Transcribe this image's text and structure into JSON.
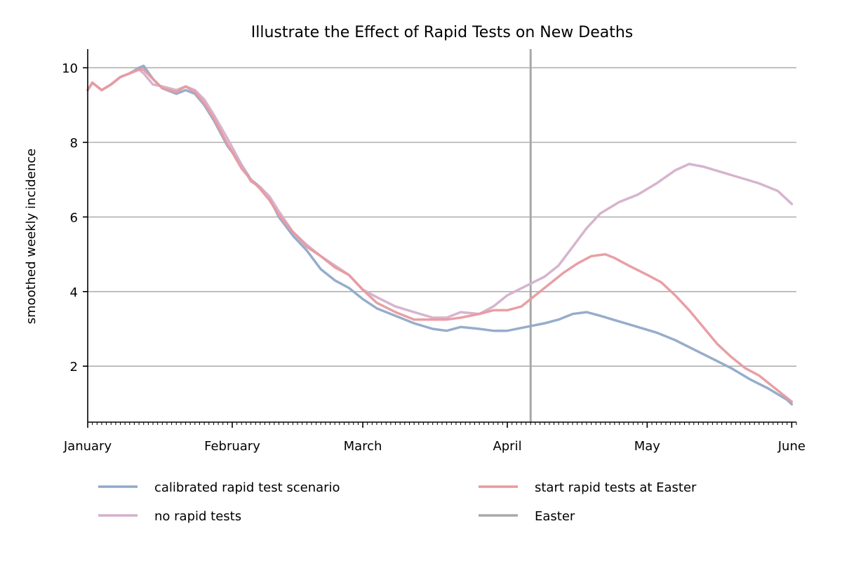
{
  "chart_data": {
    "type": "line",
    "title": "Illustrate the Effect of Rapid Tests on New Deaths",
    "xlabel": "",
    "ylabel": "smoothed weekly incidence",
    "x_axis": {
      "type": "date",
      "range": [
        "2021-01-01",
        "2021-06-02"
      ],
      "tick_labels": [
        "January",
        "February",
        "March",
        "April",
        "May",
        "June"
      ],
      "tick_dates": [
        "2021-01-01",
        "2021-02-01",
        "2021-03-01",
        "2021-04-01",
        "2021-05-01",
        "2021-06-01"
      ]
    },
    "y_axis": {
      "ticks": [
        2,
        4,
        6,
        8,
        10
      ],
      "range": [
        0.5,
        10.5
      ]
    },
    "grid": "horizontal",
    "legend_position": "below",
    "series": [
      {
        "name": "calibrated rapid test scenario",
        "color": "#90a9c8",
        "points": [
          [
            "2021-01-01",
            9.4
          ],
          [
            "2021-01-02",
            9.6
          ],
          [
            "2021-01-04",
            9.4
          ],
          [
            "2021-01-06",
            9.55
          ],
          [
            "2021-01-08",
            9.75
          ],
          [
            "2021-01-10",
            9.85
          ],
          [
            "2021-01-12",
            10.0
          ],
          [
            "2021-01-13",
            10.05
          ],
          [
            "2021-01-15",
            9.7
          ],
          [
            "2021-01-17",
            9.45
          ],
          [
            "2021-01-20",
            9.3
          ],
          [
            "2021-01-22",
            9.4
          ],
          [
            "2021-01-24",
            9.3
          ],
          [
            "2021-01-26",
            9.0
          ],
          [
            "2021-01-28",
            8.6
          ],
          [
            "2021-01-31",
            7.9
          ],
          [
            "2021-02-03",
            7.4
          ],
          [
            "2021-02-05",
            7.0
          ],
          [
            "2021-02-07",
            6.8
          ],
          [
            "2021-02-09",
            6.5
          ],
          [
            "2021-02-11",
            6.0
          ],
          [
            "2021-02-14",
            5.5
          ],
          [
            "2021-02-17",
            5.1
          ],
          [
            "2021-02-20",
            4.6
          ],
          [
            "2021-02-23",
            4.3
          ],
          [
            "2021-02-26",
            4.1
          ],
          [
            "2021-03-01",
            3.8
          ],
          [
            "2021-03-04",
            3.55
          ],
          [
            "2021-03-08",
            3.35
          ],
          [
            "2021-03-12",
            3.15
          ],
          [
            "2021-03-16",
            3.0
          ],
          [
            "2021-03-19",
            2.95
          ],
          [
            "2021-03-22",
            3.05
          ],
          [
            "2021-03-26",
            3.0
          ],
          [
            "2021-03-29",
            2.95
          ],
          [
            "2021-04-01",
            2.95
          ],
          [
            "2021-04-05",
            3.05
          ],
          [
            "2021-04-09",
            3.15
          ],
          [
            "2021-04-12",
            3.25
          ],
          [
            "2021-04-15",
            3.4
          ],
          [
            "2021-04-18",
            3.45
          ],
          [
            "2021-04-21",
            3.35
          ],
          [
            "2021-04-25",
            3.2
          ],
          [
            "2021-04-29",
            3.05
          ],
          [
            "2021-05-03",
            2.9
          ],
          [
            "2021-05-07",
            2.7
          ],
          [
            "2021-05-11",
            2.45
          ],
          [
            "2021-05-15",
            2.2
          ],
          [
            "2021-05-19",
            1.95
          ],
          [
            "2021-05-23",
            1.65
          ],
          [
            "2021-05-27",
            1.4
          ],
          [
            "2021-05-31",
            1.1
          ],
          [
            "2021-06-01",
            0.98
          ]
        ]
      },
      {
        "name": "no rapid tests",
        "color": "#d4b0cb",
        "points": [
          [
            "2021-01-01",
            9.4
          ],
          [
            "2021-01-02",
            9.6
          ],
          [
            "2021-01-04",
            9.4
          ],
          [
            "2021-01-06",
            9.55
          ],
          [
            "2021-01-08",
            9.75
          ],
          [
            "2021-01-10",
            9.85
          ],
          [
            "2021-01-12",
            9.95
          ],
          [
            "2021-01-13",
            9.85
          ],
          [
            "2021-01-15",
            9.55
          ],
          [
            "2021-01-17",
            9.5
          ],
          [
            "2021-01-20",
            9.4
          ],
          [
            "2021-01-22",
            9.5
          ],
          [
            "2021-01-24",
            9.4
          ],
          [
            "2021-01-26",
            9.15
          ],
          [
            "2021-01-28",
            8.75
          ],
          [
            "2021-01-31",
            8.1
          ],
          [
            "2021-02-03",
            7.4
          ],
          [
            "2021-02-05",
            6.95
          ],
          [
            "2021-02-07",
            6.8
          ],
          [
            "2021-02-09",
            6.55
          ],
          [
            "2021-02-11",
            6.15
          ],
          [
            "2021-02-14",
            5.6
          ],
          [
            "2021-02-17",
            5.25
          ],
          [
            "2021-02-20",
            4.95
          ],
          [
            "2021-02-23",
            4.7
          ],
          [
            "2021-02-26",
            4.45
          ],
          [
            "2021-03-01",
            4.05
          ],
          [
            "2021-03-04",
            3.85
          ],
          [
            "2021-03-08",
            3.6
          ],
          [
            "2021-03-12",
            3.45
          ],
          [
            "2021-03-16",
            3.3
          ],
          [
            "2021-03-19",
            3.3
          ],
          [
            "2021-03-22",
            3.45
          ],
          [
            "2021-03-26",
            3.4
          ],
          [
            "2021-03-29",
            3.6
          ],
          [
            "2021-04-01",
            3.9
          ],
          [
            "2021-04-05",
            4.15
          ],
          [
            "2021-04-09",
            4.4
          ],
          [
            "2021-04-12",
            4.7
          ],
          [
            "2021-04-15",
            5.2
          ],
          [
            "2021-04-18",
            5.7
          ],
          [
            "2021-04-21",
            6.1
          ],
          [
            "2021-04-25",
            6.4
          ],
          [
            "2021-04-29",
            6.6
          ],
          [
            "2021-05-03",
            6.9
          ],
          [
            "2021-05-07",
            7.25
          ],
          [
            "2021-05-10",
            7.42
          ],
          [
            "2021-05-13",
            7.35
          ],
          [
            "2021-05-17",
            7.2
          ],
          [
            "2021-05-21",
            7.05
          ],
          [
            "2021-05-25",
            6.9
          ],
          [
            "2021-05-29",
            6.7
          ],
          [
            "2021-06-01",
            6.35
          ]
        ]
      },
      {
        "name": "start rapid tests at Easter",
        "color": "#e89a9f",
        "points": [
          [
            "2021-01-01",
            9.4
          ],
          [
            "2021-01-02",
            9.6
          ],
          [
            "2021-01-04",
            9.4
          ],
          [
            "2021-01-06",
            9.55
          ],
          [
            "2021-01-08",
            9.75
          ],
          [
            "2021-01-10",
            9.85
          ],
          [
            "2021-01-12",
            9.95
          ],
          [
            "2021-01-13",
            9.95
          ],
          [
            "2021-01-15",
            9.7
          ],
          [
            "2021-01-17",
            9.45
          ],
          [
            "2021-01-20",
            9.35
          ],
          [
            "2021-01-22",
            9.5
          ],
          [
            "2021-01-24",
            9.35
          ],
          [
            "2021-01-26",
            9.05
          ],
          [
            "2021-01-28",
            8.65
          ],
          [
            "2021-01-31",
            7.95
          ],
          [
            "2021-02-03",
            7.3
          ],
          [
            "2021-02-05",
            7.0
          ],
          [
            "2021-02-07",
            6.75
          ],
          [
            "2021-02-09",
            6.45
          ],
          [
            "2021-02-11",
            6.05
          ],
          [
            "2021-02-14",
            5.6
          ],
          [
            "2021-02-17",
            5.2
          ],
          [
            "2021-02-20",
            4.95
          ],
          [
            "2021-02-23",
            4.65
          ],
          [
            "2021-02-26",
            4.45
          ],
          [
            "2021-03-01",
            4.05
          ],
          [
            "2021-03-04",
            3.7
          ],
          [
            "2021-03-08",
            3.45
          ],
          [
            "2021-03-12",
            3.25
          ],
          [
            "2021-03-16",
            3.25
          ],
          [
            "2021-03-19",
            3.25
          ],
          [
            "2021-03-22",
            3.3
          ],
          [
            "2021-03-26",
            3.4
          ],
          [
            "2021-03-29",
            3.5
          ],
          [
            "2021-04-01",
            3.5
          ],
          [
            "2021-04-04",
            3.6
          ],
          [
            "2021-04-07",
            3.9
          ],
          [
            "2021-04-10",
            4.2
          ],
          [
            "2021-04-13",
            4.5
          ],
          [
            "2021-04-16",
            4.75
          ],
          [
            "2021-04-19",
            4.95
          ],
          [
            "2021-04-22",
            5.0
          ],
          [
            "2021-04-24",
            4.9
          ],
          [
            "2021-04-27",
            4.7
          ],
          [
            "2021-05-01",
            4.45
          ],
          [
            "2021-05-04",
            4.25
          ],
          [
            "2021-05-07",
            3.9
          ],
          [
            "2021-05-10",
            3.5
          ],
          [
            "2021-05-13",
            3.05
          ],
          [
            "2021-05-16",
            2.6
          ],
          [
            "2021-05-19",
            2.25
          ],
          [
            "2021-05-22",
            1.95
          ],
          [
            "2021-05-25",
            1.75
          ],
          [
            "2021-05-28",
            1.45
          ],
          [
            "2021-06-01",
            1.05
          ]
        ]
      }
    ],
    "events": [
      {
        "name": "Easter",
        "date": "2021-04-06",
        "color": "#a8a8a8"
      }
    ]
  }
}
